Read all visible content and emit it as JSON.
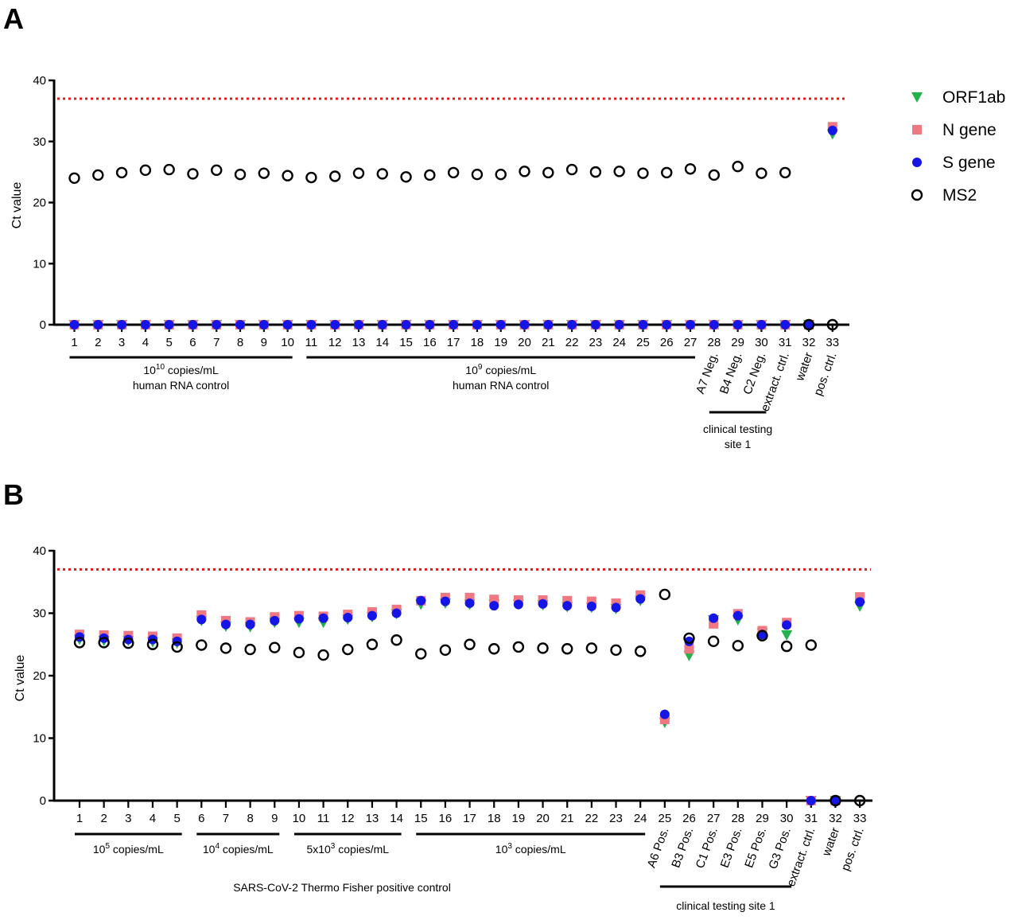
{
  "legend": [
    {
      "label": "ORF1ab",
      "marker": "triangle-down",
      "color": "#22b24c"
    },
    {
      "label": "N gene",
      "marker": "square",
      "color": "#f07882"
    },
    {
      "label": "S gene",
      "marker": "circle",
      "color": "#1515e6"
    },
    {
      "label": "MS2",
      "marker": "open-circle",
      "color": "#000000"
    }
  ],
  "threshold": {
    "value": 37,
    "color": "#e02020",
    "style": "dotted"
  },
  "chart_data": [
    {
      "panel": "A",
      "type": "scatter",
      "ylabel": "Ct value",
      "ylim": [
        0,
        40
      ],
      "yticks": [
        0,
        10,
        20,
        30,
        40
      ],
      "x": [
        1,
        2,
        3,
        4,
        5,
        6,
        7,
        8,
        9,
        10,
        11,
        12,
        13,
        14,
        15,
        16,
        17,
        18,
        19,
        20,
        21,
        22,
        23,
        24,
        25,
        26,
        27,
        28,
        29,
        30,
        31,
        32,
        33
      ],
      "rotated_labels": [
        {
          "x": 28,
          "text": "A7 Neg."
        },
        {
          "x": 29,
          "text": "B4 Neg."
        },
        {
          "x": 30,
          "text": "C2 Neg."
        },
        {
          "x": 31,
          "text": "extract. ctrl."
        },
        {
          "x": 32,
          "text": "water"
        },
        {
          "x": 33,
          "text": "pos. ctrl."
        }
      ],
      "groups": [
        {
          "from": 1,
          "to": 10,
          "base": "10",
          "sup": "10",
          "rest": " copies/mL",
          "line2": "human RNA control"
        },
        {
          "from": 11,
          "to": 27,
          "base": "10",
          "sup": "9",
          "rest": " copies/mL",
          "line2": "human RNA control"
        },
        {
          "from": 28,
          "to": 30,
          "base": "clinical testing",
          "sup": "",
          "rest": "",
          "line2": "site 1"
        }
      ],
      "series": [
        {
          "name": "ORF1ab",
          "values": [
            0,
            0,
            0,
            0,
            0,
            0,
            0,
            0,
            0,
            0,
            0,
            0,
            0,
            0,
            0,
            0,
            0,
            0,
            0,
            0,
            0,
            0,
            0,
            0,
            0,
            0,
            0,
            0,
            0,
            0,
            0,
            0,
            31.2
          ]
        },
        {
          "name": "N gene",
          "values": [
            0,
            0,
            0,
            0,
            0,
            0,
            0,
            0,
            0,
            0,
            0,
            0,
            0,
            0,
            0,
            0,
            0,
            0,
            0,
            0,
            0,
            0,
            0,
            0,
            0,
            0,
            0,
            0,
            0,
            0,
            0,
            0,
            32.4
          ]
        },
        {
          "name": "S gene",
          "values": [
            0,
            0,
            0,
            0,
            0,
            0,
            0,
            0,
            0,
            0,
            0,
            0,
            0,
            0,
            0,
            0,
            0,
            0,
            0,
            0,
            0,
            0,
            0,
            0,
            0,
            0,
            0,
            0,
            0,
            0,
            0,
            0,
            31.8
          ]
        },
        {
          "name": "MS2",
          "values": [
            24.0,
            24.5,
            24.9,
            25.3,
            25.4,
            24.7,
            25.3,
            24.6,
            24.8,
            24.4,
            24.1,
            24.3,
            24.8,
            24.7,
            24.2,
            24.5,
            24.9,
            24.6,
            24.6,
            25.1,
            24.9,
            25.4,
            25.0,
            25.1,
            24.8,
            24.9,
            25.5,
            24.5,
            25.9,
            24.8,
            24.9,
            0,
            0
          ]
        }
      ]
    },
    {
      "panel": "B",
      "type": "scatter",
      "ylabel": "Ct value",
      "ylim": [
        0,
        40
      ],
      "yticks": [
        0,
        10,
        20,
        30,
        40
      ],
      "x": [
        1,
        2,
        3,
        4,
        5,
        6,
        7,
        8,
        9,
        10,
        11,
        12,
        13,
        14,
        15,
        16,
        17,
        18,
        19,
        20,
        21,
        22,
        23,
        24,
        25,
        26,
        27,
        28,
        29,
        30,
        31,
        32,
        33
      ],
      "rotated_labels": [
        {
          "x": 25,
          "text": "A6 Pos."
        },
        {
          "x": 26,
          "text": "B3 Pos."
        },
        {
          "x": 27,
          "text": "C1 Pos."
        },
        {
          "x": 28,
          "text": "E3 Pos."
        },
        {
          "x": 29,
          "text": "E5 Pos."
        },
        {
          "x": 30,
          "text": "G3 Pos."
        },
        {
          "x": 31,
          "text": "extract. ctrl."
        },
        {
          "x": 32,
          "text": "water"
        },
        {
          "x": 33,
          "text": "pos. ctrl."
        }
      ],
      "groups": [
        {
          "from": 1,
          "to": 5,
          "base": "10",
          "sup": "5",
          "rest": " copies/mL",
          "line2": ""
        },
        {
          "from": 6,
          "to": 9,
          "base": "10",
          "sup": "4",
          "rest": " copies/mL",
          "line2": ""
        },
        {
          "from": 10,
          "to": 14,
          "base": "5x10",
          "sup": "3",
          "rest": " copies/mL",
          "line2": ""
        },
        {
          "from": 15,
          "to": 24,
          "base": "10",
          "sup": "3",
          "rest": " copies/mL",
          "line2": ""
        },
        {
          "from": 25,
          "to": 30,
          "base": "clinical testing site 1",
          "sup": "",
          "rest": "",
          "line2": ""
        }
      ],
      "caption": "SARS-CoV-2 Thermo Fisher positive control",
      "series": [
        {
          "name": "ORF1ab",
          "values": [
            25.8,
            25.6,
            25.6,
            25.4,
            25.2,
            28.8,
            27.9,
            27.8,
            28.5,
            28.5,
            28.5,
            29.0,
            29.4,
            29.9,
            31.4,
            31.6,
            31.4,
            31.4,
            31.4,
            31.3,
            31.0,
            30.9,
            30.7,
            32.0,
            12.5,
            23.2,
            28.9,
            28.9,
            26.8,
            26.5,
            0,
            0,
            31.1
          ]
        },
        {
          "name": "N gene",
          "values": [
            26.6,
            26.5,
            26.4,
            26.3,
            26.0,
            29.7,
            28.8,
            28.6,
            29.4,
            29.6,
            29.5,
            29.8,
            30.2,
            30.6,
            32.0,
            32.5,
            32.5,
            32.2,
            32.1,
            32.1,
            32.0,
            31.9,
            31.6,
            32.9,
            13.0,
            24.3,
            28.3,
            29.9,
            27.2,
            28.5,
            0,
            0,
            32.6
          ]
        },
        {
          "name": "S gene",
          "values": [
            26.2,
            26.0,
            25.8,
            25.8,
            25.5,
            29.0,
            28.2,
            28.2,
            28.8,
            29.1,
            29.2,
            29.3,
            29.6,
            30.0,
            32.0,
            31.9,
            31.6,
            31.2,
            31.4,
            31.5,
            31.2,
            31.1,
            30.9,
            32.3,
            13.8,
            25.5,
            29.2,
            29.6,
            26.6,
            28.1,
            0,
            0,
            31.8
          ]
        },
        {
          "name": "MS2",
          "values": [
            25.3,
            25.3,
            25.2,
            25.0,
            24.6,
            24.9,
            24.4,
            24.2,
            24.5,
            23.7,
            23.3,
            24.2,
            25.0,
            25.7,
            23.5,
            24.1,
            25.0,
            24.3,
            24.6,
            24.4,
            24.3,
            24.4,
            24.1,
            23.9,
            33.0,
            26.0,
            25.5,
            24.8,
            26.4,
            24.7,
            24.9,
            0,
            0
          ]
        }
      ]
    }
  ]
}
